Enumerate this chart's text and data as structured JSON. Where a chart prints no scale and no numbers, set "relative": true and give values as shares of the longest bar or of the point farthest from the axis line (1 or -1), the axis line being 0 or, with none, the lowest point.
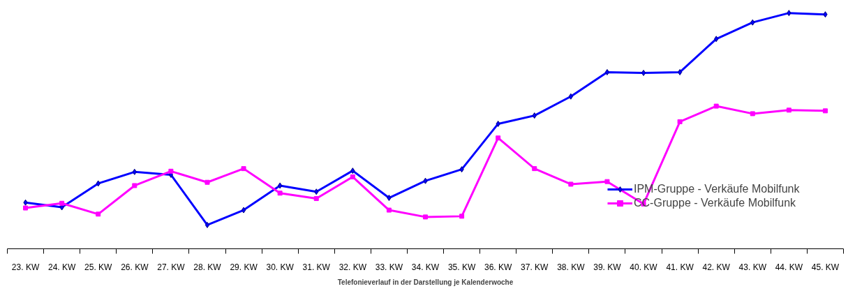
{
  "chart_data": {
    "type": "line",
    "relative": true,
    "xlabel": "Telefonieverlauf in der Darstellung je Kalenderwoche",
    "categories": [
      "23. KW",
      "24. KW",
      "25. KW",
      "26. KW",
      "27. KW",
      "28. KW",
      "29. KW",
      "30. KW",
      "31. KW",
      "32. KW",
      "33. KW",
      "34. KW",
      "35. KW",
      "36. KW",
      "37. KW",
      "38. KW",
      "39. KW",
      "40. KW",
      "41. KW",
      "42. KW",
      "43. KW",
      "44. KW",
      "45. KW"
    ],
    "series": [
      {
        "name": "IPM-Gruppe - Verkäufe Mobilfunk",
        "color": "#0000ff",
        "marker": "diamond",
        "values": [
          0.196,
          0.176,
          0.277,
          0.326,
          0.314,
          0.101,
          0.164,
          0.268,
          0.242,
          0.331,
          0.216,
          0.288,
          0.337,
          0.53,
          0.565,
          0.646,
          0.749,
          0.746,
          0.749,
          0.89,
          0.96,
          1.0,
          0.994
        ]
      },
      {
        "name": "CC-Gruppe - Verkäufe Mobilfunk",
        "color": "#ff00ff",
        "marker": "square",
        "values": [
          0.173,
          0.193,
          0.147,
          0.268,
          0.329,
          0.282,
          0.34,
          0.236,
          0.213,
          0.305,
          0.164,
          0.135,
          0.138,
          0.47,
          0.34,
          0.274,
          0.285,
          0.19,
          0.539,
          0.605,
          0.573,
          0.588,
          0.585
        ]
      }
    ],
    "legend": "right",
    "grid": false,
    "line_style": "solid"
  }
}
